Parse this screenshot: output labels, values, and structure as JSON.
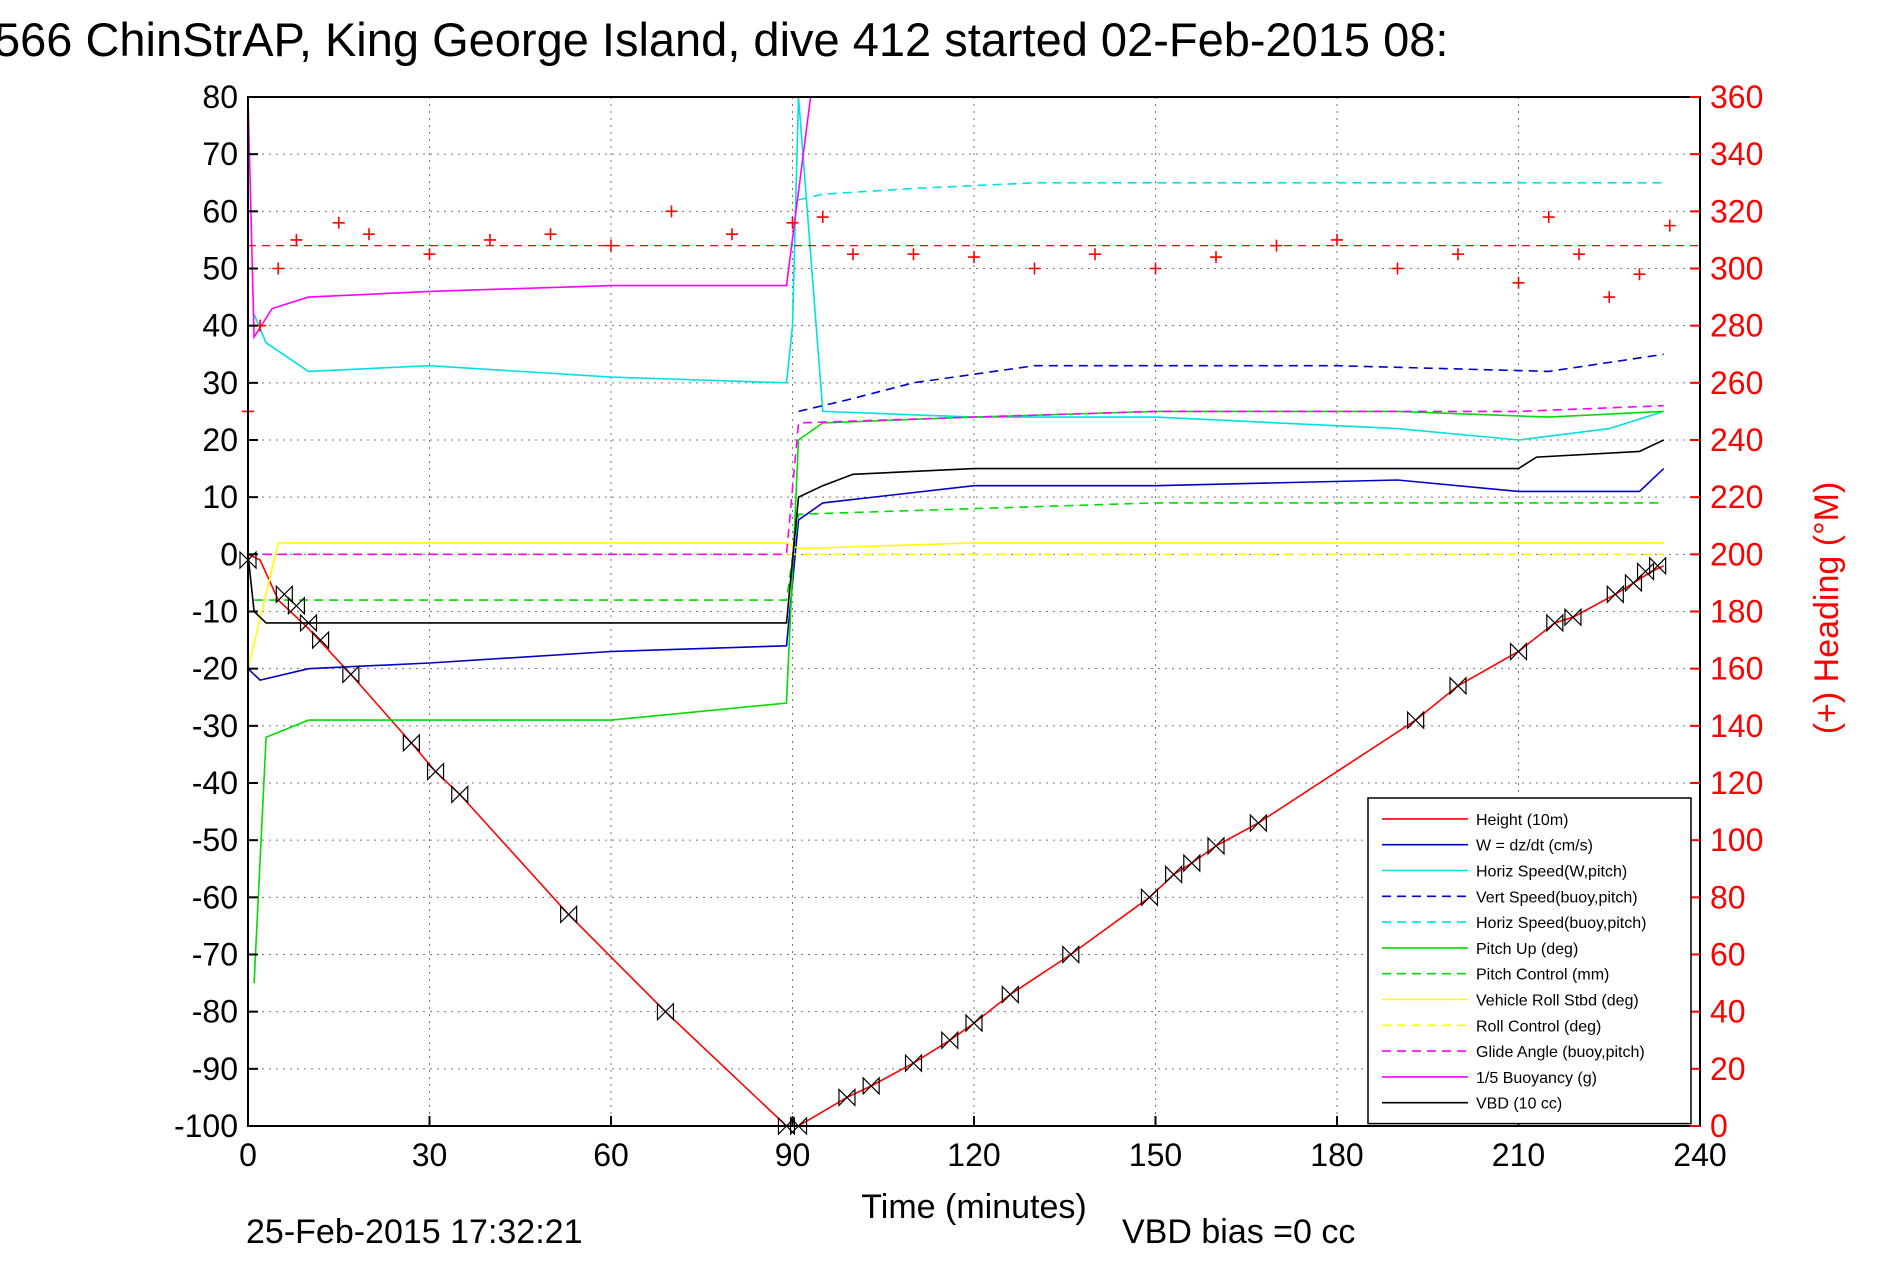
{
  "title": "566 ChinStrAP, King George Island, dive 412 started 02-Feb-2015 08:",
  "footer_date": "25-Feb-2015 17:32:21",
  "footer_bias": "VBD bias =0 cc",
  "chart_data": {
    "type": "line",
    "xlabel": "Time (minutes)",
    "ylabel": "",
    "y2label": "(+) Heading (°M)",
    "xlim": [
      0,
      240
    ],
    "ylim": [
      -100,
      80
    ],
    "y2lim": [
      0,
      360
    ],
    "x_ticks": [
      "0",
      "30",
      "60",
      "90",
      "120",
      "150",
      "180",
      "210",
      "240"
    ],
    "y_ticks": [
      "80",
      "70",
      "60",
      "50",
      "40",
      "30",
      "20",
      "10",
      "0",
      "-10",
      "-20",
      "-30",
      "-40",
      "-50",
      "-60",
      "-70",
      "-80",
      "-90",
      "-100"
    ],
    "y2_ticks": [
      "360",
      "340",
      "320",
      "300",
      "280",
      "260",
      "240",
      "220",
      "200",
      "180",
      "160",
      "140",
      "120",
      "100",
      "80",
      "60",
      "40",
      "20",
      "0"
    ],
    "grid": true,
    "legend_position": "lower-right",
    "series": [
      {
        "name": "Height (10m)",
        "color": "#ff0000",
        "style": "solid",
        "x": [
          0,
          2,
          5,
          10,
          17,
          27,
          31,
          35,
          53,
          69,
          89,
          91,
          99,
          103,
          110,
          116,
          120,
          126,
          136,
          149,
          153,
          156,
          160,
          167,
          193,
          200,
          210,
          216,
          219,
          226,
          229,
          232,
          234
        ],
        "y": [
          0,
          -1,
          -8,
          -13,
          -21,
          -33,
          -38,
          -42,
          -63,
          -80,
          -100,
          -100,
          -95,
          -93,
          -89,
          -85,
          -82,
          -77,
          -70,
          -60,
          -56,
          -54,
          -51,
          -47,
          -29,
          -23,
          -17,
          -12,
          -11,
          -7,
          -5,
          -3,
          -2
        ]
      },
      {
        "name": "W = dz/dt (cm/s)",
        "color": "#0000cc",
        "style": "solid",
        "x": [
          0,
          2,
          10,
          30,
          60,
          89,
          91,
          95,
          120,
          150,
          190,
          210,
          230,
          234
        ],
        "y": [
          -20,
          -22,
          -20,
          -19,
          -17,
          -16,
          6,
          9,
          12,
          12,
          13,
          11,
          11,
          15
        ]
      },
      {
        "name": "Horiz Speed(W,pitch)",
        "color": "#00e0e0",
        "style": "solid",
        "x": [
          1,
          3,
          10,
          30,
          60,
          89,
          90,
          91,
          95,
          120,
          150,
          190,
          210,
          225,
          234
        ],
        "y": [
          42,
          37,
          32,
          33,
          31,
          30,
          40,
          80,
          25,
          24,
          24,
          22,
          20,
          22,
          25
        ]
      },
      {
        "name": "Vert Speed(buoy,pitch)",
        "color": "#0000cc",
        "style": "dashed",
        "x": [
          91,
          99,
          110,
          130,
          150,
          180,
          215,
          234
        ],
        "y": [
          25,
          27,
          30,
          33,
          33,
          33,
          32,
          35
        ]
      },
      {
        "name": "Horiz Speed(buoy,pitch)",
        "color": "#00e0e0",
        "style": "dashed",
        "x": [
          91,
          95,
          110,
          130,
          150,
          200,
          225,
          234
        ],
        "y": [
          62,
          63,
          64,
          65,
          65,
          65,
          65,
          65
        ]
      },
      {
        "name": "Pitch Up (deg)",
        "color": "#00dd00",
        "style": "solid",
        "x": [
          1,
          3,
          10,
          30,
          60,
          89,
          91,
          95,
          120,
          150,
          190,
          215,
          234
        ],
        "y": [
          -75,
          -32,
          -29,
          -29,
          -29,
          -26,
          20,
          23,
          24,
          25,
          25,
          24,
          25
        ]
      },
      {
        "name": "Pitch Control (mm)",
        "color": "#00dd00",
        "style": "dashed",
        "x": [
          1,
          89,
          91,
          120,
          150,
          210,
          234
        ],
        "y": [
          -8,
          -8,
          7,
          8,
          9,
          9,
          9
        ]
      },
      {
        "name": "Vehicle Roll Stbd (deg)",
        "color": "#ffff00",
        "style": "solid",
        "x": [
          0,
          5,
          30,
          60,
          89,
          91,
          120,
          150,
          210,
          234
        ],
        "y": [
          -20,
          2,
          2,
          2,
          2,
          1,
          2,
          2,
          2,
          2
        ]
      },
      {
        "name": "Roll Control (deg)",
        "color": "#ffff00",
        "style": "dashed",
        "x": [
          0,
          5,
          30,
          60,
          89,
          91,
          120,
          150,
          210,
          234
        ],
        "y": [
          0,
          0,
          0,
          0,
          0,
          0,
          0,
          0,
          0,
          0
        ]
      },
      {
        "name": "Glide Angle (buoy,pitch)",
        "color": "#ff00ff",
        "style": "dashed",
        "x": [
          0,
          89,
          91,
          120,
          150,
          210,
          234
        ],
        "y": [
          0,
          0,
          23,
          24,
          25,
          25,
          26
        ]
      },
      {
        "name": "1/5 Buoyancy (g)",
        "color": "#ff00ff",
        "style": "solid",
        "x": [
          0,
          1,
          4,
          10,
          30,
          60,
          89,
          93
        ],
        "y": [
          80,
          38,
          43,
          45,
          46,
          47,
          47,
          80
        ]
      },
      {
        "name": "VBD (10 cc)",
        "color": "#000000",
        "style": "solid",
        "x": [
          0,
          1,
          3,
          89,
          91,
          95,
          100,
          120,
          150,
          210,
          213,
          230,
          234
        ],
        "y": [
          0,
          -10,
          -12,
          -12,
          10,
          12,
          14,
          15,
          15,
          15,
          17,
          18,
          20
        ]
      }
    ],
    "heading": {
      "name": "Heading",
      "color": "#ff0000",
      "marker": "+",
      "x": [
        0,
        2,
        5,
        8,
        15,
        20,
        30,
        40,
        50,
        60,
        70,
        80,
        90,
        95,
        100,
        110,
        120,
        130,
        140,
        150,
        160,
        170,
        180,
        190,
        200,
        210,
        215,
        220,
        225,
        230,
        235
      ],
      "y": [
        250,
        280,
        300,
        310,
        316,
        312,
        305,
        310,
        312,
        308,
        320,
        312,
        316,
        318,
        305,
        305,
        304,
        300,
        305,
        300,
        304,
        308,
        310,
        300,
        305,
        295,
        318,
        305,
        290,
        298,
        315
      ],
      "reference": 308
    },
    "markers": {
      "name": "Height markers",
      "symbol": "bowtie",
      "x": [
        0,
        6,
        8,
        10,
        12,
        17,
        27,
        31,
        35,
        53,
        69,
        89,
        91,
        99,
        103,
        110,
        116,
        120,
        126,
        136,
        149,
        153,
        156,
        160,
        167,
        193,
        200,
        210,
        216,
        219,
        226,
        229,
        231,
        233
      ],
      "y": [
        -1,
        -7,
        -9,
        -12,
        -15,
        -21,
        -33,
        -38,
        -42,
        -63,
        -80,
        -100,
        -100,
        -95,
        -93,
        -89,
        -85,
        -82,
        -77,
        -70,
        -60,
        -56,
        -54,
        -51,
        -47,
        -29,
        -23,
        -17,
        -12,
        -11,
        -7,
        -5,
        -3,
        -2
      ]
    }
  }
}
